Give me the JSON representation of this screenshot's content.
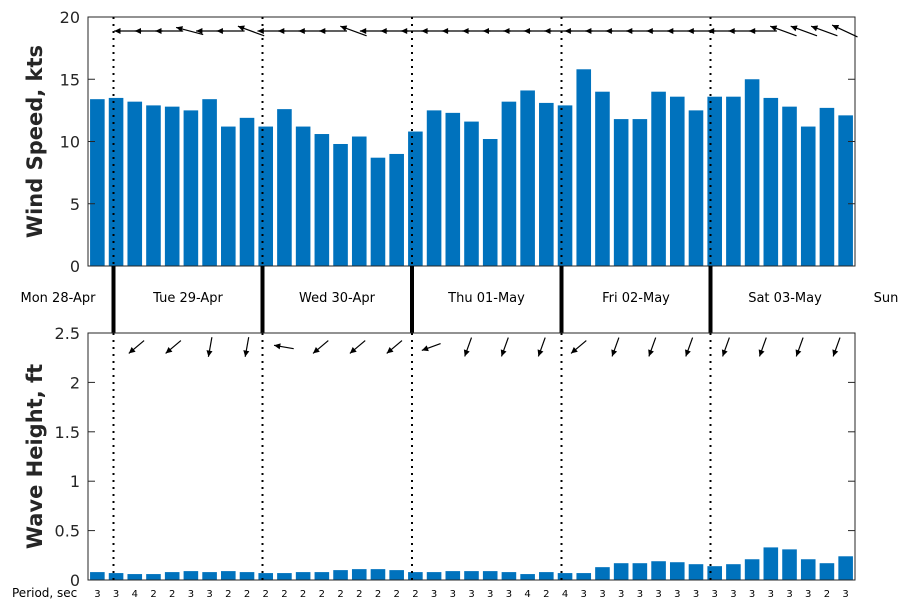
{
  "chart_data": [
    {
      "type": "bar",
      "ylabel": "Wind Speed, kts",
      "ylim": [
        0,
        20
      ],
      "yticks": [
        0,
        5,
        10,
        15,
        20
      ],
      "color": "#0072bd",
      "values": [
        13.4,
        13.5,
        13.2,
        12.9,
        12.8,
        12.5,
        13.4,
        11.2,
        11.9,
        11.2,
        12.6,
        11.2,
        10.6,
        9.8,
        10.4,
        8.7,
        9.0,
        10.8,
        12.5,
        12.3,
        11.6,
        10.2,
        13.2,
        14.1,
        13.1,
        12.9,
        15.8,
        14.0,
        11.8,
        11.8,
        14.0,
        13.6,
        12.5,
        13.6,
        13.6,
        15.0,
        13.5,
        12.8,
        11.2,
        12.7,
        12.1
      ],
      "direction_arrow_angles_deg": [
        180,
        180,
        180,
        165,
        180,
        180,
        160,
        180,
        180,
        180,
        180,
        160,
        180,
        180,
        180,
        180,
        180,
        180,
        180,
        180,
        180,
        180,
        180,
        180,
        180,
        180,
        180,
        180,
        180,
        180,
        180,
        180,
        160,
        160,
        160,
        155
      ],
      "grid": false
    },
    {
      "type": "bar",
      "ylabel": "Wave Height, ft",
      "ylim": [
        0,
        2.5
      ],
      "yticks": [
        0,
        0.5,
        1,
        1.5,
        2,
        2.5
      ],
      "ytick_labels": [
        "0",
        "0.5",
        "1",
        "1.5",
        "2",
        "2.5"
      ],
      "color": "#0072bd",
      "values": [
        0.08,
        0.07,
        0.06,
        0.06,
        0.08,
        0.09,
        0.08,
        0.09,
        0.08,
        0.07,
        0.07,
        0.08,
        0.08,
        0.1,
        0.11,
        0.11,
        0.1,
        0.08,
        0.08,
        0.09,
        0.09,
        0.09,
        0.08,
        0.06,
        0.08,
        0.07,
        0.07,
        0.13,
        0.17,
        0.17,
        0.19,
        0.18,
        0.16,
        0.14,
        0.16,
        0.21,
        0.33,
        0.31,
        0.21,
        0.17,
        0.24
      ],
      "periods": [
        "3",
        "3",
        "4",
        "2",
        "2",
        "3",
        "3",
        "2",
        "2",
        "2",
        "2",
        "2",
        "2",
        "2",
        "2",
        "2",
        "2",
        "2",
        "3",
        "3",
        "3",
        "3",
        "3",
        "4",
        "2",
        "4",
        "3",
        "3",
        "3",
        "3",
        "3",
        "3",
        "3",
        "3",
        "3",
        "3",
        "3",
        "3",
        "3",
        "2",
        "3"
      ],
      "period_label": "Period, sec",
      "direction_arrow_angles_deg": [
        220,
        220,
        260,
        260,
        170,
        220,
        220,
        220,
        200,
        250,
        250,
        250,
        220,
        250,
        250,
        250,
        250,
        250,
        250,
        250
      ],
      "grid": false
    }
  ],
  "days": [
    "Mon 28-Apr",
    "Tue 29-Apr",
    "Wed 30-Apr",
    "Thu 01-May",
    "Fri 02-May",
    "Sat 03-May",
    "Sun"
  ]
}
